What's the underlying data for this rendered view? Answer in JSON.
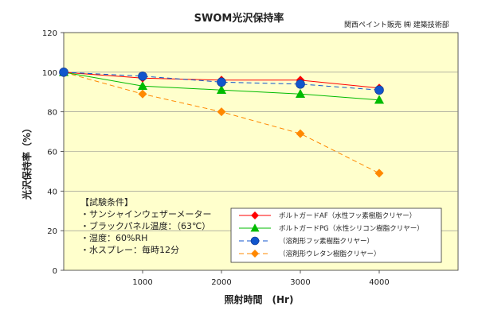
{
  "chart_data": {
    "type": "line",
    "title": "SWOM光沢保持率",
    "credit": "関西ペイント販売 ㈱ 建築技術部",
    "xlabel": "照射時間　(Hr)",
    "ylabel": "光沢保持率（%）",
    "xlim": [
      0,
      5000
    ],
    "ylim": [
      0,
      120
    ],
    "x_ticks": [
      1000,
      2000,
      3000,
      4000
    ],
    "x_tick_labels": [
      "1000",
      "2000",
      "3000",
      "4000"
    ],
    "y_ticks": [
      0,
      20,
      40,
      60,
      80,
      100,
      120
    ],
    "y_tick_labels": [
      "0",
      "20",
      "40",
      "60",
      "80",
      "100",
      "120"
    ],
    "x": [
      0,
      1000,
      2000,
      3000,
      4000
    ],
    "series": [
      {
        "name": "ボルトガードAF（水性フッ素樹脂クリヤー）",
        "values": [
          100,
          97,
          96,
          96,
          92
        ],
        "color": "#ff0000",
        "marker": "diamond",
        "dashed": false
      },
      {
        "name": "ボルトガードPG（水性シリコン樹脂クリヤー）",
        "values": [
          100,
          93,
          91,
          89,
          86
        ],
        "color": "#00bb00",
        "marker": "triangle",
        "dashed": false
      },
      {
        "name": "（溶剤形フッ素樹脂クリヤー）",
        "values": [
          100,
          98,
          95,
          94,
          91
        ],
        "color": "#1155cc",
        "marker": "circle",
        "dashed": true
      },
      {
        "name": "（溶剤形ウレタン樹脂クリヤー）",
        "values": [
          100,
          89,
          80,
          69,
          49
        ],
        "color": "#ff8800",
        "marker": "diamond",
        "dashed": true
      }
    ],
    "grid": "horizontal",
    "plot_background": "#ffffcc",
    "legend_position": "bottom-right",
    "conditions": {
      "title": "【試験条件】",
      "items": [
        "・サンシャインウェザーメーター",
        "・ブラックパネル温度：（63℃）",
        "・湿度：60%RH",
        "・水スプレー：毎時12分"
      ]
    }
  }
}
